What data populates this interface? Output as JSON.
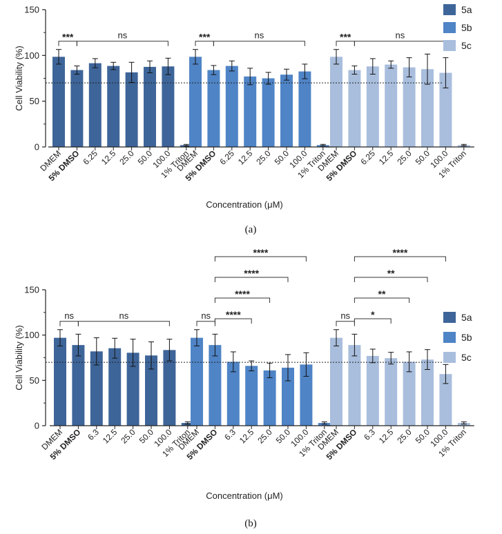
{
  "colors": {
    "5a": "#3e6599",
    "5b": "#4f84c6",
    "5c": "#a9bedd"
  },
  "chart_data": [
    {
      "type": "bar",
      "panel_label": "(a)",
      "ylabel": "Cell Viability (%)",
      "xlabel": "Concentration (μM)",
      "ylim": [
        0,
        150
      ],
      "yticks": [
        "0",
        "50",
        "100",
        "150"
      ],
      "reference_line": 70,
      "categories": [
        "DMEM",
        "5% DMSO",
        "6.25",
        "12.5",
        "25.0",
        "50.0",
        "100.0",
        "1% Triton"
      ],
      "bold_categories": [
        "5% DMSO"
      ],
      "legend": [
        "5a",
        "5b",
        "5c"
      ],
      "series": [
        {
          "name": "5a",
          "values": [
            98.5,
            84,
            91.5,
            88.5,
            81.5,
            87.5,
            88,
            2
          ],
          "errors": [
            8,
            4.5,
            5,
            4,
            11,
            6.5,
            9,
            0.8
          ]
        },
        {
          "name": "5b",
          "values": [
            98.5,
            84,
            88.5,
            77,
            75,
            79,
            82.5,
            2
          ],
          "errors": [
            8,
            5,
            5.5,
            9,
            6.5,
            6,
            8,
            0.8
          ]
        },
        {
          "name": "5c",
          "values": [
            98.5,
            84,
            88,
            90,
            87,
            85,
            81,
            2
          ],
          "errors": [
            8,
            4.5,
            8.5,
            4,
            10.5,
            16.5,
            16.5,
            0.8
          ]
        }
      ],
      "annotations": [
        {
          "series": 0,
          "from": 0,
          "to": 1,
          "text": "***"
        },
        {
          "series": 0,
          "from": 1,
          "to": 6,
          "text": "ns"
        },
        {
          "series": 1,
          "from": 0,
          "to": 1,
          "text": "***"
        },
        {
          "series": 1,
          "from": 1,
          "to": 6,
          "text": "ns"
        },
        {
          "series": 2,
          "from": 0,
          "to": 1,
          "text": "***"
        },
        {
          "series": 2,
          "from": 1,
          "to": 6,
          "text": "ns"
        }
      ]
    },
    {
      "type": "bar",
      "panel_label": "(b)",
      "ylabel": "Cell Viability (%)",
      "xlabel": "Concentration (μM)",
      "ylim": [
        0,
        150
      ],
      "yticks": [
        "0",
        "50",
        "100",
        "150"
      ],
      "reference_line": 70,
      "categories": [
        "DMEM",
        "5% DMSO",
        "6.3",
        "12.5",
        "25.0",
        "50.0",
        "100.0",
        "1% Triton"
      ],
      "bold_categories": [
        "5% DMSO"
      ],
      "legend": [
        "5a",
        "5b",
        "5c"
      ],
      "series": [
        {
          "name": "5a",
          "values": [
            97,
            89,
            82,
            85.5,
            80.5,
            77.5,
            83.5,
            3
          ],
          "errors": [
            9,
            12,
            15,
            11,
            15,
            15,
            12,
            1.2
          ]
        },
        {
          "name": "5b",
          "values": [
            97,
            89,
            70.5,
            66,
            61,
            64,
            67.5,
            3
          ],
          "errors": [
            9,
            12,
            11,
            5.5,
            8,
            14.5,
            13,
            1.2
          ]
        },
        {
          "name": "5c",
          "values": [
            97,
            89,
            77,
            74.5,
            70.5,
            73,
            57,
            3
          ],
          "errors": [
            9,
            12,
            7.5,
            6.5,
            11,
            11,
            10.5,
            1.2
          ]
        }
      ],
      "annotations": [
        {
          "series": 0,
          "from": 0,
          "to": 1,
          "text": "ns"
        },
        {
          "series": 0,
          "from": 1,
          "to": 6,
          "text": "ns"
        },
        {
          "series": 1,
          "from": 0,
          "to": 1,
          "text": "ns"
        },
        {
          "series": 1,
          "from": 1,
          "to": 3,
          "text": "****"
        },
        {
          "series": 1,
          "from": 1,
          "to": 4,
          "text": "****"
        },
        {
          "series": 1,
          "from": 1,
          "to": 5,
          "text": "****"
        },
        {
          "series": 1,
          "from": 1,
          "to": 6,
          "text": "****"
        },
        {
          "series": 2,
          "from": 0,
          "to": 1,
          "text": "ns"
        },
        {
          "series": 2,
          "from": 1,
          "to": 3,
          "text": "*"
        },
        {
          "series": 2,
          "from": 1,
          "to": 4,
          "text": "**"
        },
        {
          "series": 2,
          "from": 1,
          "to": 5,
          "text": "**"
        },
        {
          "series": 2,
          "from": 1,
          "to": 6,
          "text": "****"
        }
      ]
    }
  ]
}
